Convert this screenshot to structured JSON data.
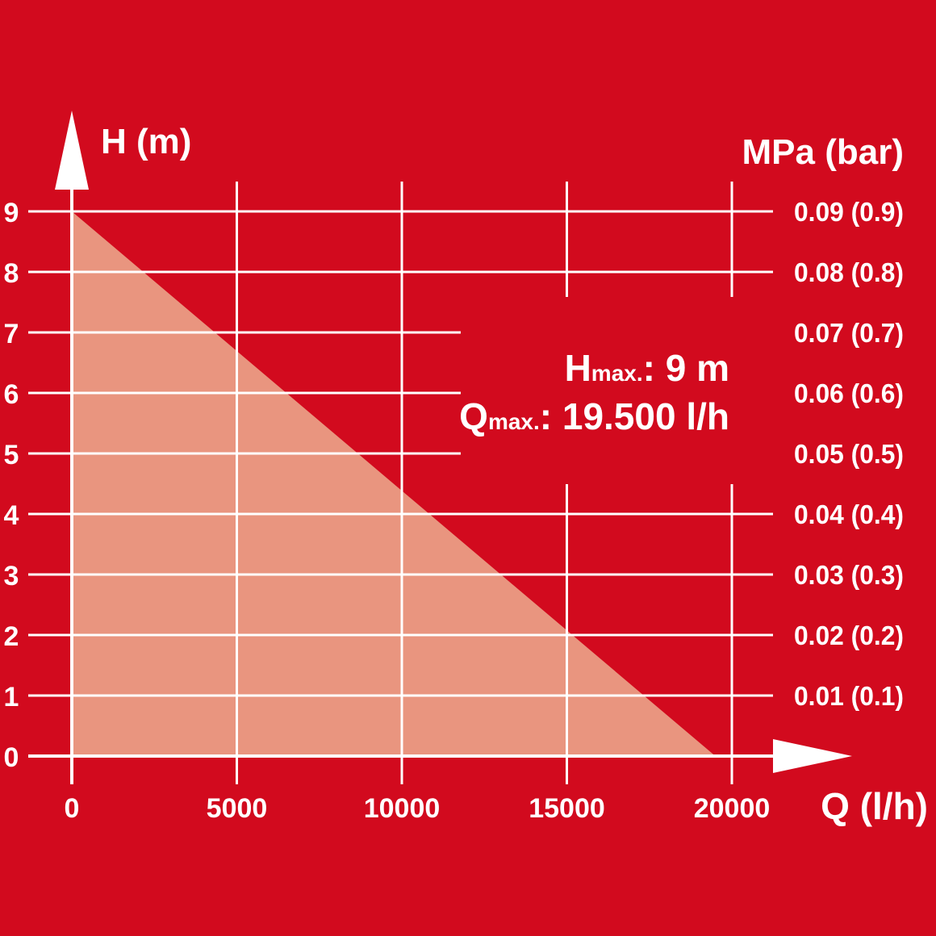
{
  "chart_data": {
    "type": "area",
    "xlabel": "Q (l/h)",
    "ylabel": "H (m)",
    "y2label": "MPa (bar)",
    "x_ticks": [
      0,
      5000,
      10000,
      15000,
      20000
    ],
    "y_ticks": [
      0,
      1,
      2,
      3,
      4,
      5,
      6,
      7,
      8,
      9
    ],
    "y2_tick_labels": [
      "",
      "0.01 (0.1)",
      "0.02 (0.2)",
      "0.03 (0.3)",
      "0.04 (0.4)",
      "0.05 (0.5)",
      "0.06 (0.6)",
      "0.07 (0.7)",
      "0.08 (0.8)",
      "0.09 (0.9)"
    ],
    "xlim": [
      0,
      20000
    ],
    "ylim": [
      0,
      9
    ],
    "grid": true,
    "series": [
      {
        "x": [
          0,
          19500
        ],
        "y": [
          9,
          0
        ]
      }
    ],
    "annotations": [
      {
        "main": "H",
        "sub": "max.",
        "rest": ": 9 m"
      },
      {
        "main": "Q",
        "sub": "max.",
        "rest": ": 19.500 l/h"
      }
    ],
    "colors": {
      "background": "#d20a1e",
      "fill": "#e9957f",
      "lines": "#ffffff"
    }
  }
}
